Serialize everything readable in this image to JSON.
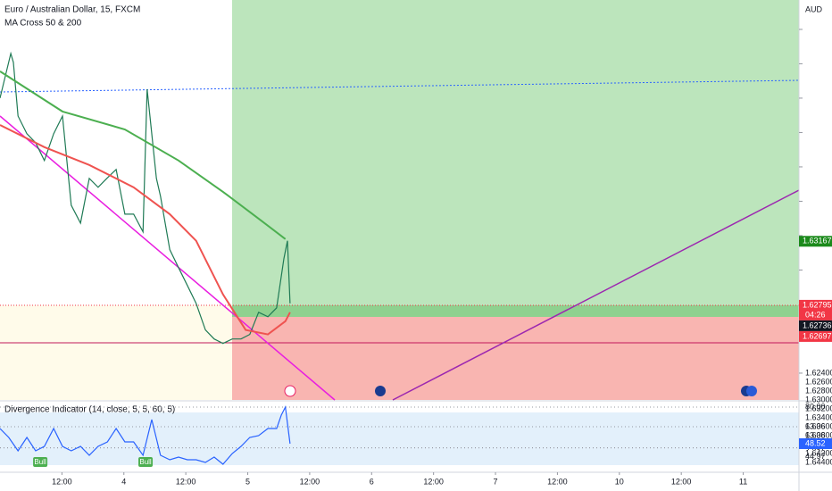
{
  "header": {
    "symbol": "Euro / Australian Dollar, 15, FXCM",
    "indicator": "MA Cross 50 & 200"
  },
  "chart_data": [
    {
      "type": "line",
      "y_label": "AUD",
      "xlim": [
        0,
        154.8
      ],
      "ylim": [
        1.62244,
        1.64571
      ],
      "yticks": [
        {
          "value": 1.624,
          "label": "1.62400"
        },
        {
          "value": 1.626,
          "label": "1.62600"
        },
        {
          "value": 1.628,
          "label": "1.62800"
        },
        {
          "value": 1.63,
          "label": "1.63000"
        },
        {
          "value": 1.632,
          "label": "1.63200"
        },
        {
          "value": 1.634,
          "label": "1.63400"
        },
        {
          "value": 1.636,
          "label": "1.63600"
        },
        {
          "value": 1.638,
          "label": "1.63800"
        },
        {
          "value": 1.64,
          "label": "1.64000"
        },
        {
          "value": 1.642,
          "label": "1.64200"
        },
        {
          "value": 1.644,
          "label": "1.64400"
        }
      ],
      "xticks": [
        {
          "value": 12,
          "label": "12:00"
        },
        {
          "value": 24,
          "label": "4"
        },
        {
          "value": 36,
          "label": "12:00"
        },
        {
          "value": 48,
          "label": "5"
        },
        {
          "value": 60,
          "label": "12:00"
        },
        {
          "value": 72,
          "label": "6"
        },
        {
          "value": 84,
          "label": "12:00"
        },
        {
          "value": 96,
          "label": "7"
        },
        {
          "value": 108,
          "label": "12:00"
        },
        {
          "value": 120,
          "label": "10"
        },
        {
          "value": 132,
          "label": "12:00"
        },
        {
          "value": 144,
          "label": "11"
        }
      ],
      "series": [
        {
          "color": "#1f7a55",
          "x": [
            0,
            2.1,
            2.6,
            3.5,
            5.2,
            6.9,
            8.6,
            10.4,
            12.1,
            13.8,
            15.6,
            17.3,
            19,
            20.7,
            22.5,
            24.2,
            25.9,
            27.7,
            28.5,
            29.4,
            30.3,
            31.1,
            32.9,
            34.6,
            36.3,
            38,
            39.8,
            41.5,
            43.2,
            45,
            46.7,
            48.4,
            50.1,
            51.9,
            53.6,
            55,
            55.7,
            56.2
          ],
          "values": [
            1.64,
            1.6426,
            1.64208,
            1.63896,
            1.63793,
            1.63741,
            1.63637,
            1.63793,
            1.63896,
            1.63377,
            1.63273,
            1.63533,
            1.63481,
            1.63533,
            1.63585,
            1.63325,
            1.63325,
            1.63222,
            1.64052,
            1.63793,
            1.63533,
            1.63429,
            1.63118,
            1.63014,
            1.6291,
            1.62806,
            1.62651,
            1.62599,
            1.62573,
            1.62599,
            1.62599,
            1.62625,
            1.62754,
            1.62728,
            1.6278,
            1.63066,
            1.6317,
            1.62806
          ]
        },
        {
          "color": "#4caf50",
          "x": [
            0,
            12.1,
            24.2,
            34.6,
            43.2,
            50.1,
            55.3
          ],
          "values": [
            1.64156,
            1.63922,
            1.63818,
            1.63637,
            1.63455,
            1.63299,
            1.6318
          ]
        },
        {
          "color": "#ef5350",
          "x": [
            0,
            8.6,
            17.3,
            25.9,
            32.9,
            38,
            43.2,
            47.6,
            51.9,
            55.3,
            56.2
          ],
          "values": [
            1.63844,
            1.63715,
            1.63611,
            1.63481,
            1.63325,
            1.6317,
            1.62858,
            1.62651,
            1.62625,
            1.62702,
            1.62754
          ]
        }
      ],
      "price_tags": [
        {
          "value": 1.63167,
          "label": "1.63167",
          "color": "#1b8a1b"
        },
        {
          "value": 1.62795,
          "label": "1.62795",
          "color": "#f23645",
          "countdown": "04:26"
        },
        {
          "value": 1.62736,
          "label": "1.62736",
          "color": "#131722"
        },
        {
          "value": 1.62697,
          "label": "1.62697",
          "color": "#f23645"
        }
      ]
    },
    {
      "type": "line",
      "title": "Divergence Indicator (14, close, 5, 5, 60, 5)",
      "ylim": [
        24.7,
        84.6
      ],
      "yticks": [
        {
          "value": 80,
          "label": "80.00"
        },
        63.06,
        63.06,
        44.97,
        44.97
      ],
      "series": [
        {
          "color": "#2962ff",
          "x": [
            0,
            1.7,
            3.5,
            5.2,
            6.9,
            8.6,
            10.4,
            12.1,
            13.8,
            15.6,
            17.3,
            19,
            20.8,
            22.5,
            24.2,
            25.9,
            27.7,
            29.4,
            31.1,
            32.9,
            34.6,
            36.3,
            38,
            39.8,
            41.5,
            43.2,
            45,
            46.7,
            48.4,
            50.1,
            51.9,
            53.6,
            54.5,
            55.3,
            56.2
          ],
          "values": [
            61.57,
            53.89,
            42.37,
            53.89,
            42.37,
            46.21,
            61.57,
            46.21,
            42.37,
            46.21,
            38.53,
            46.21,
            50.05,
            61.57,
            50.05,
            50.05,
            38.53,
            69.25,
            38.53,
            34.68,
            36.99,
            34.68,
            34.68,
            32.38,
            36.99,
            30.84,
            40.06,
            46.21,
            53.89,
            55.42,
            61.57,
            61.57,
            73.09,
            80,
            48.52
          ]
        }
      ],
      "last_tag": {
        "value": 48.52,
        "label": "48.52",
        "color": "#2962ff"
      },
      "annotations": [
        {
          "text": "Bull",
          "x": 7.8
        },
        {
          "text": "Bull",
          "x": 28.2
        }
      ]
    }
  ]
}
